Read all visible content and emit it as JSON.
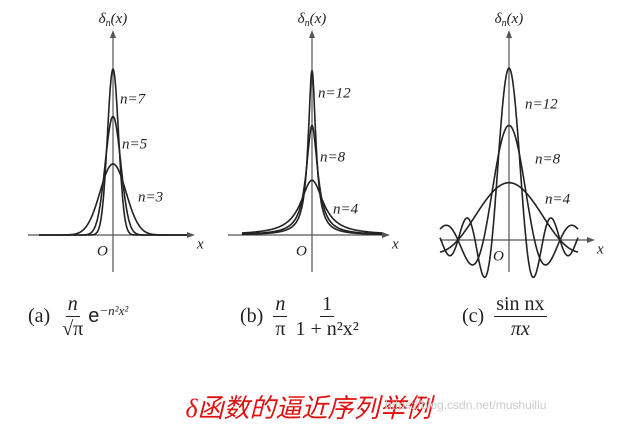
{
  "panels": [
    {
      "y_label": {
        "symbol": "δ",
        "sub": "n",
        "arg": "(x)"
      },
      "origin": "O",
      "x_label": "x",
      "curves": [
        {
          "n": 7,
          "label": "n=7"
        },
        {
          "n": 5,
          "label": "n=5"
        },
        {
          "n": 3,
          "label": "n=3"
        }
      ],
      "caption": {
        "tag": "(a)",
        "num": "n",
        "den": "√π",
        "base": "e",
        "exp": "−n²x²"
      }
    },
    {
      "y_label": {
        "symbol": "δ",
        "sub": "n",
        "arg": "(x)"
      },
      "origin": "O",
      "x_label": "x",
      "curves": [
        {
          "n": 12,
          "label": "n=12"
        },
        {
          "n": 8,
          "label": "n=8"
        },
        {
          "n": 4,
          "label": "n=4"
        }
      ],
      "caption": {
        "tag": "(b)",
        "num": "n",
        "den": "π",
        "num2": "1",
        "den2": "1 + n²x²"
      }
    },
    {
      "y_label": {
        "symbol": "δ",
        "sub": "n",
        "arg": "(x)"
      },
      "origin": "O",
      "x_label": "x",
      "curves": [
        {
          "n": 12,
          "label": "n=12"
        },
        {
          "n": 8,
          "label": "n=8"
        },
        {
          "n": 4,
          "label": "n=4"
        }
      ],
      "caption": {
        "tag": "(c)",
        "num": "sin nx",
        "den": "πx"
      }
    }
  ],
  "title": "δ函数的逼近序列举例",
  "watermark": "https://blog.csdn.net/mushuillu"
}
